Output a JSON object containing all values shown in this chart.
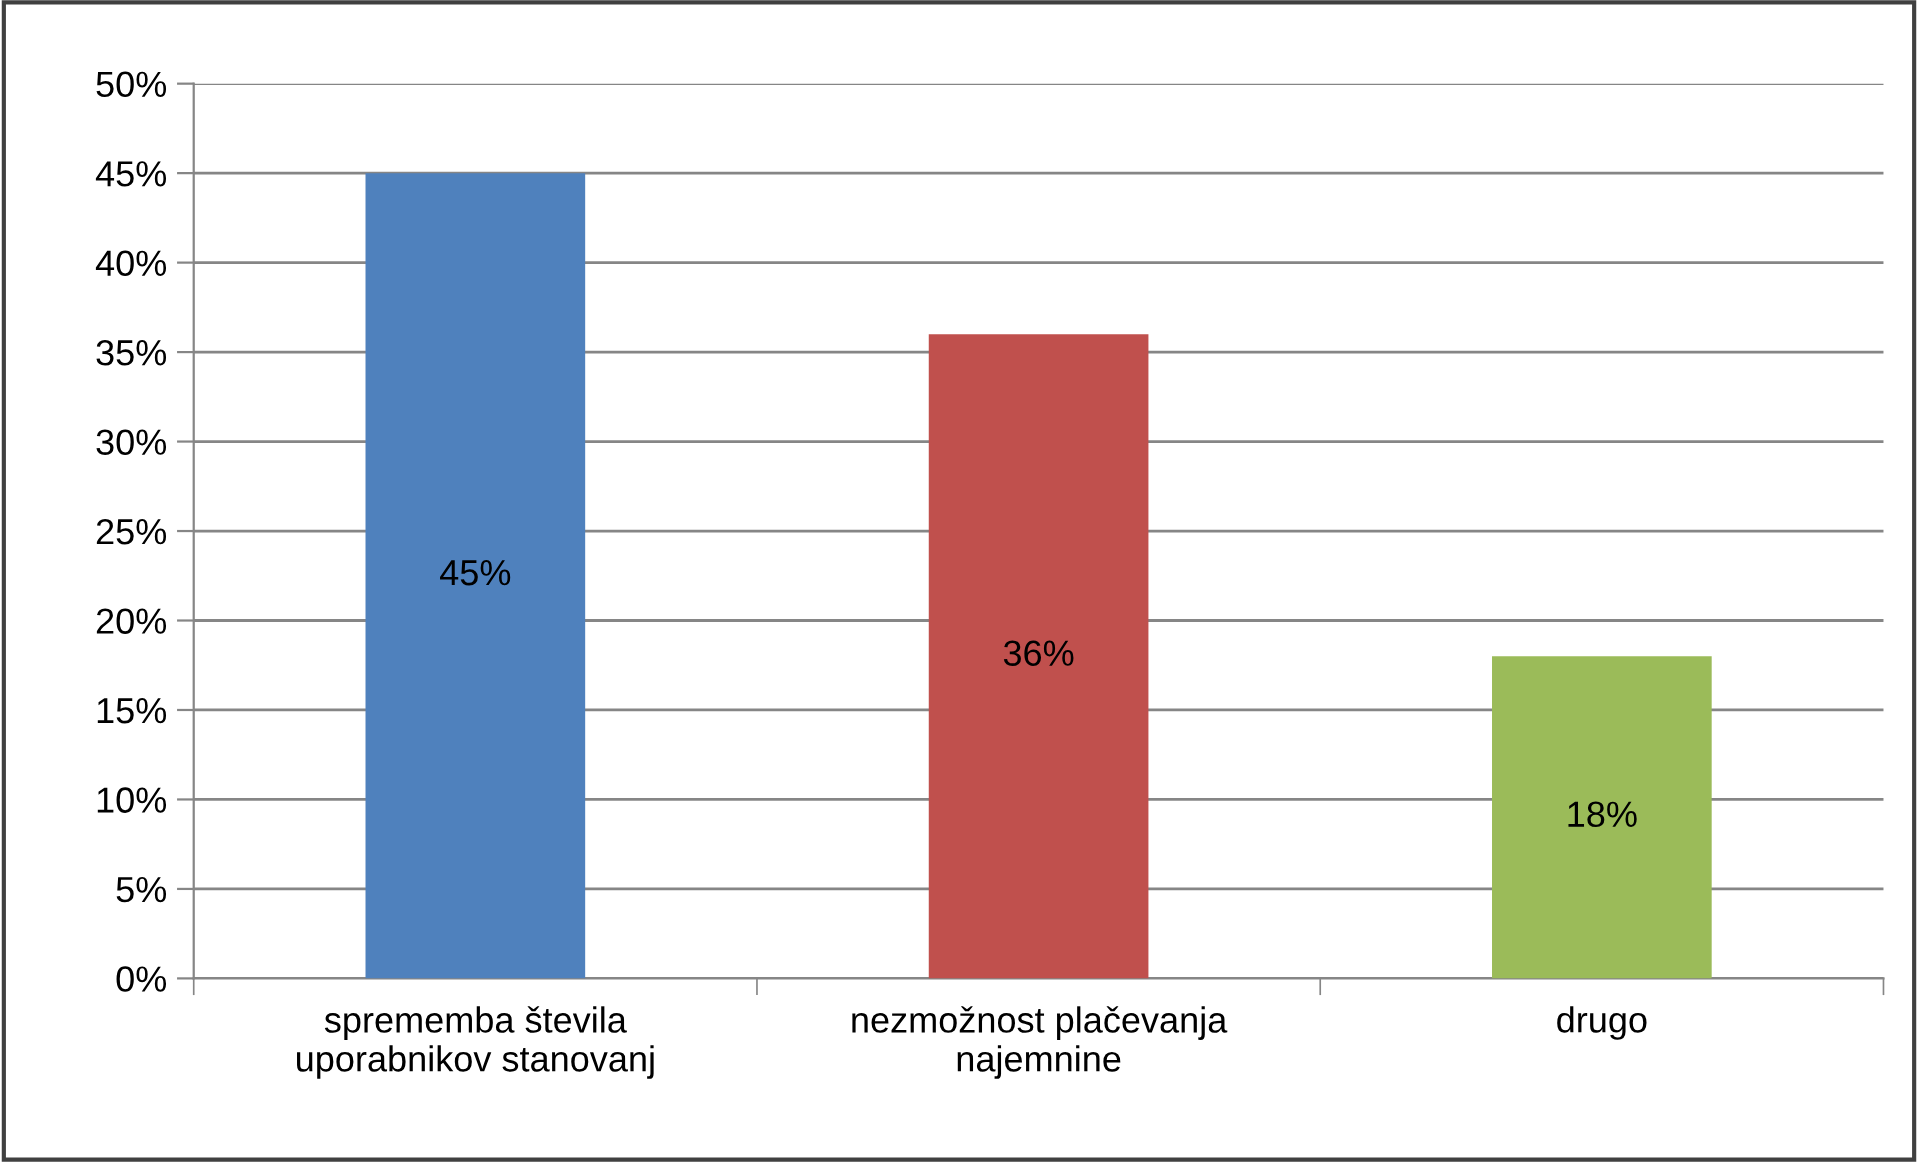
{
  "chart_data": {
    "type": "bar",
    "categories": [
      "sprememba števila\nuporabnikov stanovanj",
      "nezmožnost plačevanja\nnajemnine",
      "drugo"
    ],
    "values": [
      45,
      36,
      18
    ],
    "colors": [
      "#4f81bd",
      "#c0504d",
      "#9bbb59"
    ],
    "value_labels": [
      "45%",
      "36%",
      "18%"
    ],
    "ylim": [
      0,
      50
    ],
    "yticks": [
      {
        "value": 0,
        "label": "0%"
      },
      {
        "value": 5,
        "label": "5%"
      },
      {
        "value": 10,
        "label": "10%"
      },
      {
        "value": 15,
        "label": "15%"
      },
      {
        "value": 20,
        "label": "20%"
      },
      {
        "value": 25,
        "label": "25%"
      },
      {
        "value": 30,
        "label": "30%"
      },
      {
        "value": 35,
        "label": "35%"
      },
      {
        "value": 40,
        "label": "40%"
      },
      {
        "value": 45,
        "label": "45%"
      },
      {
        "value": 50,
        "label": "50%"
      }
    ],
    "grid": "y"
  }
}
